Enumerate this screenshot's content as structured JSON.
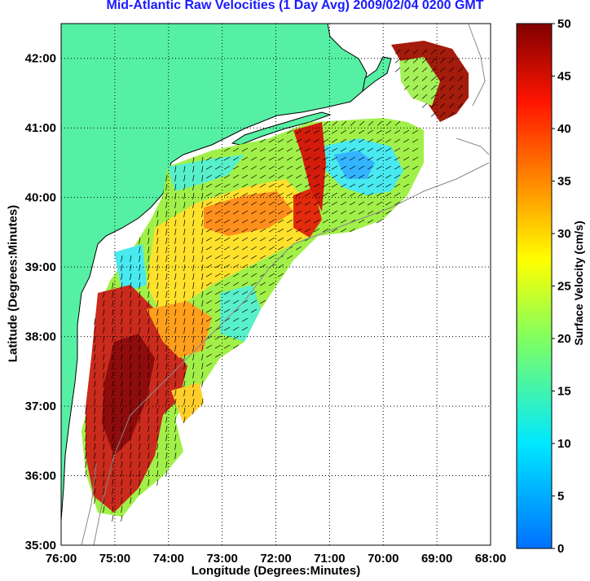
{
  "title": "Mid-Atlantic Raw Velocities (1 Day Avg) 2009/02/04 0200 GMT",
  "xlabel": "Longitude (Degrees:Minutes)",
  "ylabel": "Latitude (Degrees:Minutes)",
  "colorbar_label": "Surface Velocity (cm/s)",
  "colors": {
    "land": "#55f0a4",
    "title": "#1a1aff"
  },
  "chart_data": {
    "type": "heatmap",
    "x_ticks": [
      "76:00",
      "75:00",
      "74:00",
      "73:00",
      "72:00",
      "71:00",
      "70:00",
      "69:00",
      "68:00"
    ],
    "y_ticks": [
      "35:00",
      "36:00",
      "37:00",
      "38:00",
      "39:00",
      "40:00",
      "41:00",
      "42:00"
    ],
    "xlim": [
      -76,
      -68
    ],
    "ylim": [
      35,
      42.5
    ],
    "grid": true,
    "colorbar": {
      "min": 0,
      "max": 50,
      "ticks": [
        0,
        5,
        10,
        15,
        20,
        25,
        30,
        35,
        40,
        45,
        50
      ],
      "colormap": "jet"
    }
  }
}
